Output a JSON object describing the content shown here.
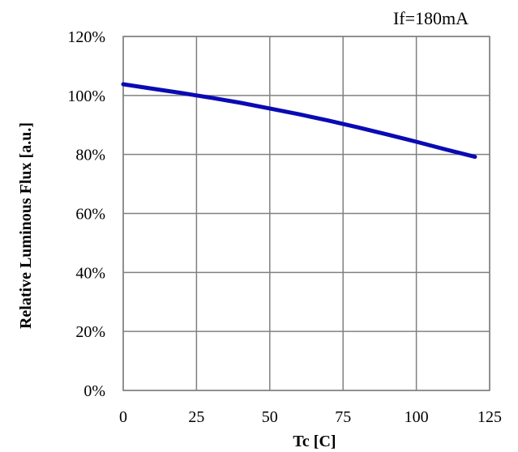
{
  "chart_data": {
    "type": "line",
    "annotation": "If=180mA",
    "xlabel": "Tc [C]",
    "ylabel": "Relative  Luminous  Flux  [a.u.]",
    "xlim": [
      0,
      125
    ],
    "ylim": [
      0,
      120
    ],
    "xticks": [
      0,
      25,
      50,
      75,
      100,
      125
    ],
    "yticks": [
      0,
      20,
      40,
      60,
      80,
      100,
      120
    ],
    "xtick_labels": [
      "0",
      "25",
      "50",
      "75",
      "100",
      "125"
    ],
    "ytick_labels": [
      "0%",
      "20%",
      "40%",
      "60%",
      "80%",
      "100%",
      "120%"
    ],
    "grid": true,
    "series": [
      {
        "color": "#0a0ab4",
        "x": [
          0,
          10,
          20,
          25,
          30,
          40,
          50,
          60,
          70,
          80,
          90,
          100,
          110,
          120
        ],
        "y": [
          103.8,
          102.3,
          100.8,
          100.0,
          99.2,
          97.5,
          95.6,
          93.6,
          91.5,
          89.2,
          86.8,
          84.3,
          81.7,
          79.2
        ]
      }
    ]
  }
}
